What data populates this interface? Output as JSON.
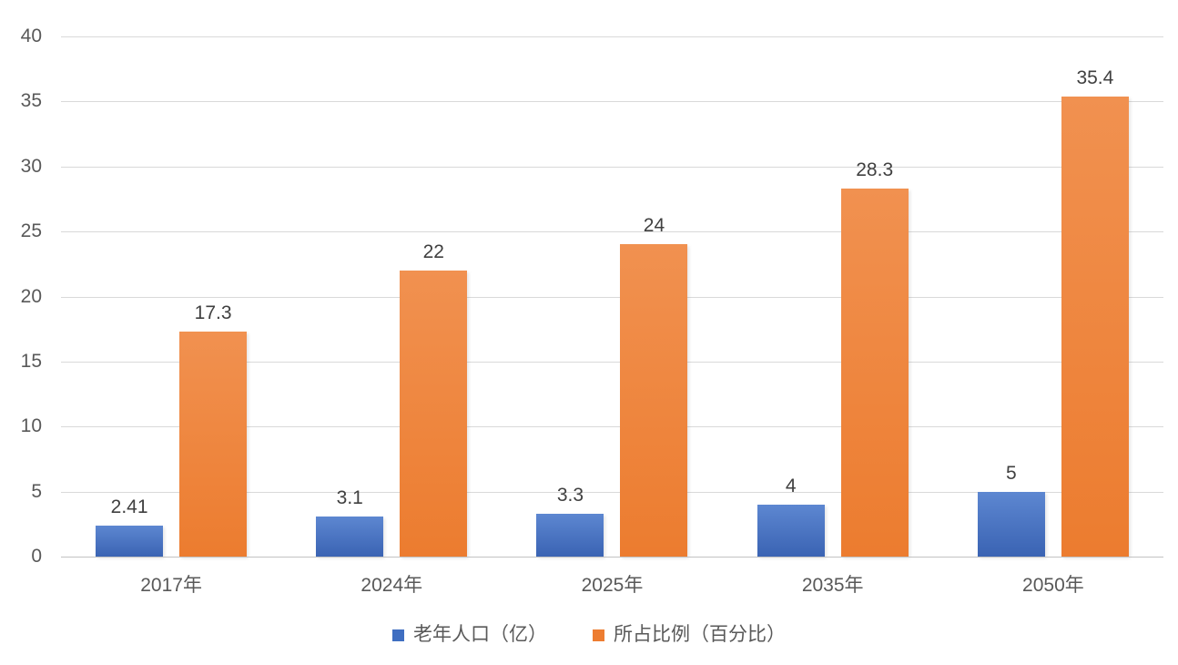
{
  "chart_data": {
    "type": "bar",
    "title": "",
    "categories": [
      "2017年",
      "2024年",
      "2025年",
      "2035年",
      "2050年"
    ],
    "series": [
      {
        "name": "老年人口（亿）",
        "values": [
          2.41,
          3.1,
          3.3,
          4,
          5
        ],
        "labels": [
          "2.41",
          "3.1",
          "3.3",
          "4",
          "5"
        ],
        "color_top": "#5d87d1",
        "color_bottom": "#3a63b3",
        "legend_color": "#3f6ec1"
      },
      {
        "name": "所占比例（百分比）",
        "values": [
          17.3,
          22,
          24,
          28.3,
          35.4
        ],
        "labels": [
          "17.3",
          "22",
          "24",
          "28.3",
          "35.4"
        ],
        "color_top": "#f19150",
        "color_bottom": "#ec7c2f",
        "legend_color": "#ed7d31"
      }
    ],
    "y_ticks": [
      0,
      5,
      10,
      15,
      20,
      25,
      30,
      35,
      40
    ],
    "ylim": [
      0,
      40
    ],
    "grid": true,
    "legend_position": "bottom"
  },
  "colors": {
    "gridline": "#d9d9d9",
    "axis_line": "#c3c3c3",
    "axis_text": "#595959",
    "data_label_text": "#404040",
    "background": "#ffffff"
  }
}
